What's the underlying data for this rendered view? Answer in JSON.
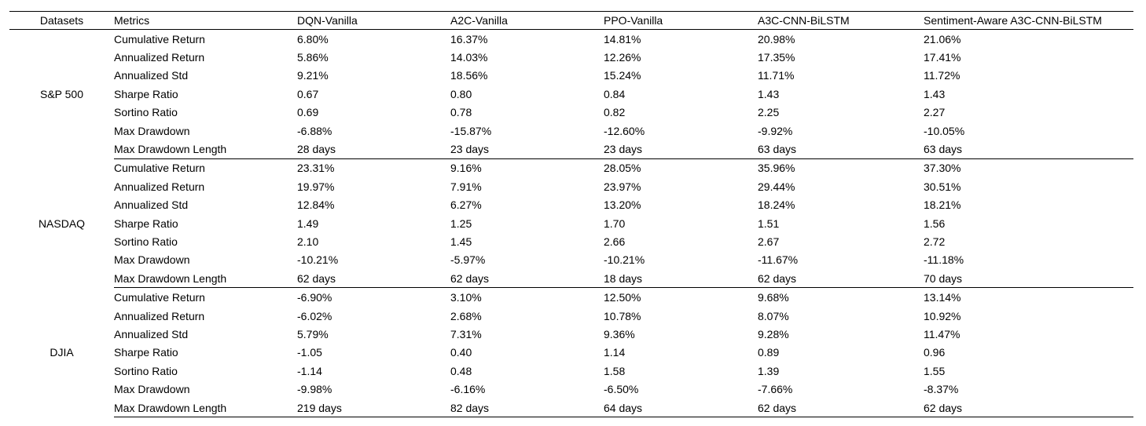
{
  "table": {
    "headers": [
      "Datasets",
      "Metrics",
      "DQN-Vanilla",
      "A2C-Vanilla",
      "PPO-Vanilla",
      "A3C-CNN-BiLSTM",
      "Sentiment-Aware A3C-CNN-BiLSTM"
    ],
    "groups": [
      {
        "dataset": "S&P 500",
        "rows": [
          {
            "metric": "Cumulative Return",
            "values": [
              "6.80%",
              "16.37%",
              "14.81%",
              "20.98%",
              "21.06%"
            ]
          },
          {
            "metric": "Annualized Return",
            "values": [
              "5.86%",
              "14.03%",
              "12.26%",
              "17.35%",
              "17.41%"
            ]
          },
          {
            "metric": "Annualized Std",
            "values": [
              "9.21%",
              "18.56%",
              "15.24%",
              "11.71%",
              "11.72%"
            ]
          },
          {
            "metric": "Sharpe Ratio",
            "values": [
              "0.67",
              "0.80",
              "0.84",
              "1.43",
              "1.43"
            ]
          },
          {
            "metric": "Sortino Ratio",
            "values": [
              "0.69",
              "0.78",
              "0.82",
              "2.25",
              "2.27"
            ]
          },
          {
            "metric": "Max Drawdown",
            "values": [
              "-6.88%",
              "-15.87%",
              "-12.60%",
              "-9.92%",
              "-10.05%"
            ]
          },
          {
            "metric": "Max Drawdown Length",
            "values": [
              "28 days",
              "23 days",
              "23 days",
              "63 days",
              "63 days"
            ]
          }
        ]
      },
      {
        "dataset": "NASDAQ",
        "rows": [
          {
            "metric": "Cumulative Return",
            "values": [
              "23.31%",
              "9.16%",
              "28.05%",
              "35.96%",
              "37.30%"
            ]
          },
          {
            "metric": "Annualized Return",
            "values": [
              "19.97%",
              "7.91%",
              "23.97%",
              "29.44%",
              "30.51%"
            ]
          },
          {
            "metric": "Annualized Std",
            "values": [
              "12.84%",
              "6.27%",
              "13.20%",
              "18.24%",
              "18.21%"
            ]
          },
          {
            "metric": "Sharpe Ratio",
            "values": [
              "1.49",
              "1.25",
              "1.70",
              "1.51",
              "1.56"
            ]
          },
          {
            "metric": "Sortino Ratio",
            "values": [
              "2.10",
              "1.45",
              "2.66",
              "2.67",
              "2.72"
            ]
          },
          {
            "metric": "Max Drawdown",
            "values": [
              "-10.21%",
              "-5.97%",
              "-10.21%",
              "-11.67%",
              "-11.18%"
            ]
          },
          {
            "metric": "Max Drawdown Length",
            "values": [
              "62 days",
              "62 days",
              "18 days",
              "62 days",
              "70 days"
            ]
          }
        ]
      },
      {
        "dataset": "DJIA",
        "rows": [
          {
            "metric": "Cumulative Return",
            "values": [
              "-6.90%",
              "3.10%",
              "12.50%",
              "9.68%",
              "13.14%"
            ]
          },
          {
            "metric": "Annualized Return",
            "values": [
              "-6.02%",
              "2.68%",
              "10.78%",
              "8.07%",
              "10.92%"
            ]
          },
          {
            "metric": "Annualized Std",
            "values": [
              "5.79%",
              "7.31%",
              "9.36%",
              "9.28%",
              "11.47%"
            ]
          },
          {
            "metric": "Sharpe Ratio",
            "values": [
              "-1.05",
              "0.40",
              "1.14",
              "0.89",
              "0.96"
            ]
          },
          {
            "metric": "Sortino Ratio",
            "values": [
              "-1.14",
              "0.48",
              "1.58",
              "1.39",
              "1.55"
            ]
          },
          {
            "metric": "Max Drawdown",
            "values": [
              "-9.98%",
              "-6.16%",
              "-6.50%",
              "-7.66%",
              "-8.37%"
            ]
          },
          {
            "metric": "Max Drawdown Length",
            "values": [
              "219 days",
              "82 days",
              "64 days",
              "62 days",
              "62 days"
            ]
          }
        ]
      }
    ]
  }
}
